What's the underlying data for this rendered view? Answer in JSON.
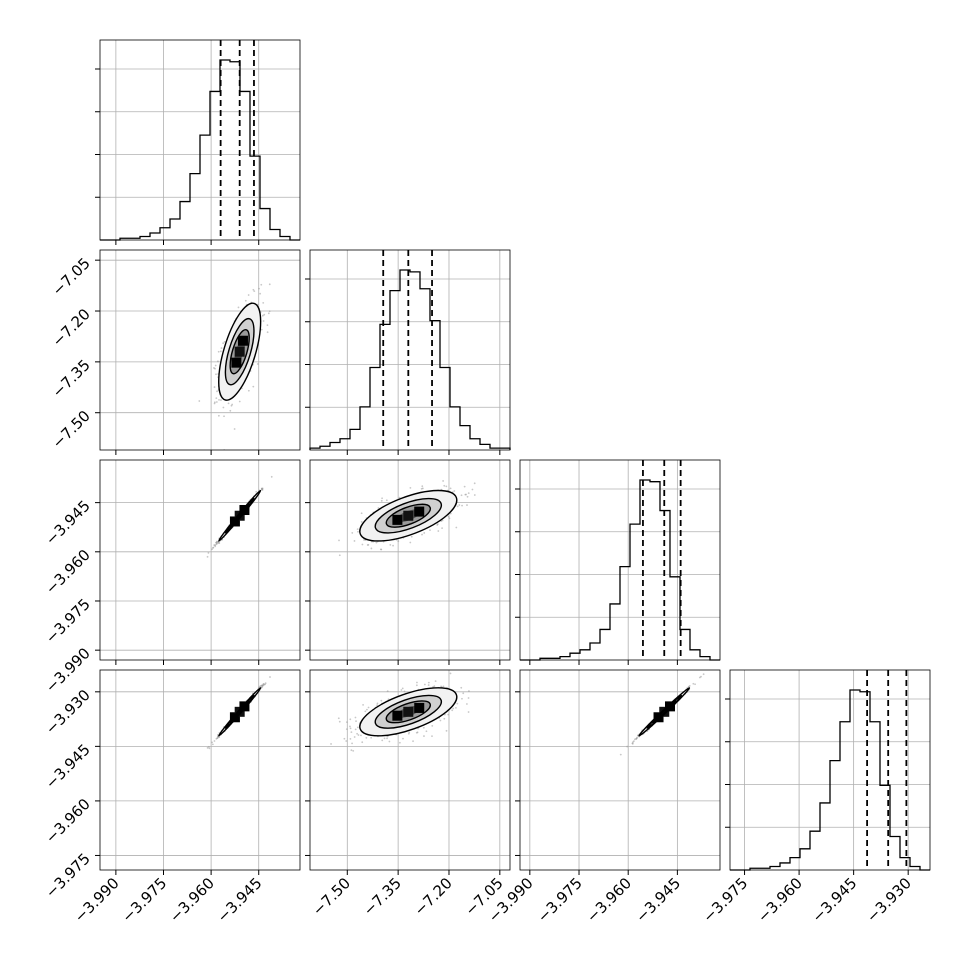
{
  "chart_data": {
    "type": "corner",
    "variables": 4,
    "grid": true,
    "colors": {
      "line": "#000000",
      "grid": "#b0b0b0",
      "points": "#9a9a9a"
    },
    "axes": {
      "v0": {
        "range": [
          -3.995,
          -3.932
        ],
        "ticks": [
          "−3.990",
          "−3.975",
          "−3.960",
          "−3.945"
        ],
        "tick_values": [
          -3.99,
          -3.975,
          -3.96,
          -3.945
        ]
      },
      "v1": {
        "range": [
          -7.61,
          -7.02
        ],
        "ticks": [
          "−7.50",
          "−7.35",
          "−7.20",
          "−7.05"
        ],
        "tick_values": [
          -7.5,
          -7.35,
          -7.2,
          -7.05
        ]
      },
      "v2": {
        "range": [
          -3.993,
          -3.932
        ],
        "ticks": [
          "−3.990",
          "−3.975",
          "−3.960",
          "−3.945"
        ],
        "tick_values": [
          -3.99,
          -3.975,
          -3.96,
          -3.945
        ]
      },
      "v3": {
        "range": [
          -3.979,
          -3.924
        ],
        "ticks": [
          "−3.975",
          "−3.960",
          "−3.945",
          "−3.930"
        ],
        "tick_values": [
          -3.975,
          -3.96,
          -3.945,
          -3.93
        ]
      }
    },
    "marginals": [
      {
        "variable": 0,
        "quantiles": [
          -3.957,
          -3.951,
          -3.9465
        ],
        "counts": [
          0,
          0,
          1,
          1,
          2,
          4,
          7,
          12,
          22,
          38,
          60,
          85,
          103,
          102,
          85,
          48,
          18,
          6,
          2,
          0
        ]
      },
      {
        "variable": 1,
        "quantiles": [
          -7.394,
          -7.32,
          -7.25
        ],
        "counts": [
          1,
          2,
          4,
          6,
          11,
          23,
          44,
          67,
          85,
          96,
          95,
          86,
          69,
          44,
          23,
          13,
          6,
          3,
          1,
          1
        ]
      },
      {
        "variable": 2,
        "quantiles": [
          -3.9555,
          -3.949,
          -3.944
        ],
        "counts": [
          0,
          0,
          1,
          1,
          2,
          4,
          6,
          10,
          18,
          33,
          55,
          80,
          106,
          105,
          88,
          49,
          18,
          6,
          2,
          0
        ]
      },
      {
        "variable": 3,
        "quantiles": [
          -3.9413,
          -3.9355,
          -3.9305
        ],
        "counts": [
          0,
          0,
          1,
          1,
          2,
          4,
          7,
          12,
          22,
          38,
          62,
          84,
          102,
          101,
          84,
          48,
          19,
          7,
          2,
          0
        ]
      }
    ],
    "pairs": [
      {
        "x": 0,
        "y": 1,
        "center": [
          -3.951,
          -7.32
        ],
        "sigma": [
          0.003,
          0.065
        ],
        "rho": 0.62
      },
      {
        "x": 0,
        "y": 2,
        "center": [
          -3.951,
          -3.949
        ],
        "sigma": [
          0.003,
          0.0035
        ],
        "rho": 0.995
      },
      {
        "x": 1,
        "y": 2,
        "center": [
          -7.32,
          -3.949
        ],
        "sigma": [
          0.065,
          0.0035
        ],
        "rho": 0.62
      },
      {
        "x": 0,
        "y": 3,
        "center": [
          -3.951,
          -3.9355
        ],
        "sigma": [
          0.003,
          0.003
        ],
        "rho": 0.995
      },
      {
        "x": 1,
        "y": 3,
        "center": [
          -7.32,
          -3.9355
        ],
        "sigma": [
          0.065,
          0.003
        ],
        "rho": 0.62
      },
      {
        "x": 2,
        "y": 3,
        "center": [
          -3.949,
          -3.9355
        ],
        "sigma": [
          0.0035,
          0.003
        ],
        "rho": 0.995
      }
    ]
  }
}
